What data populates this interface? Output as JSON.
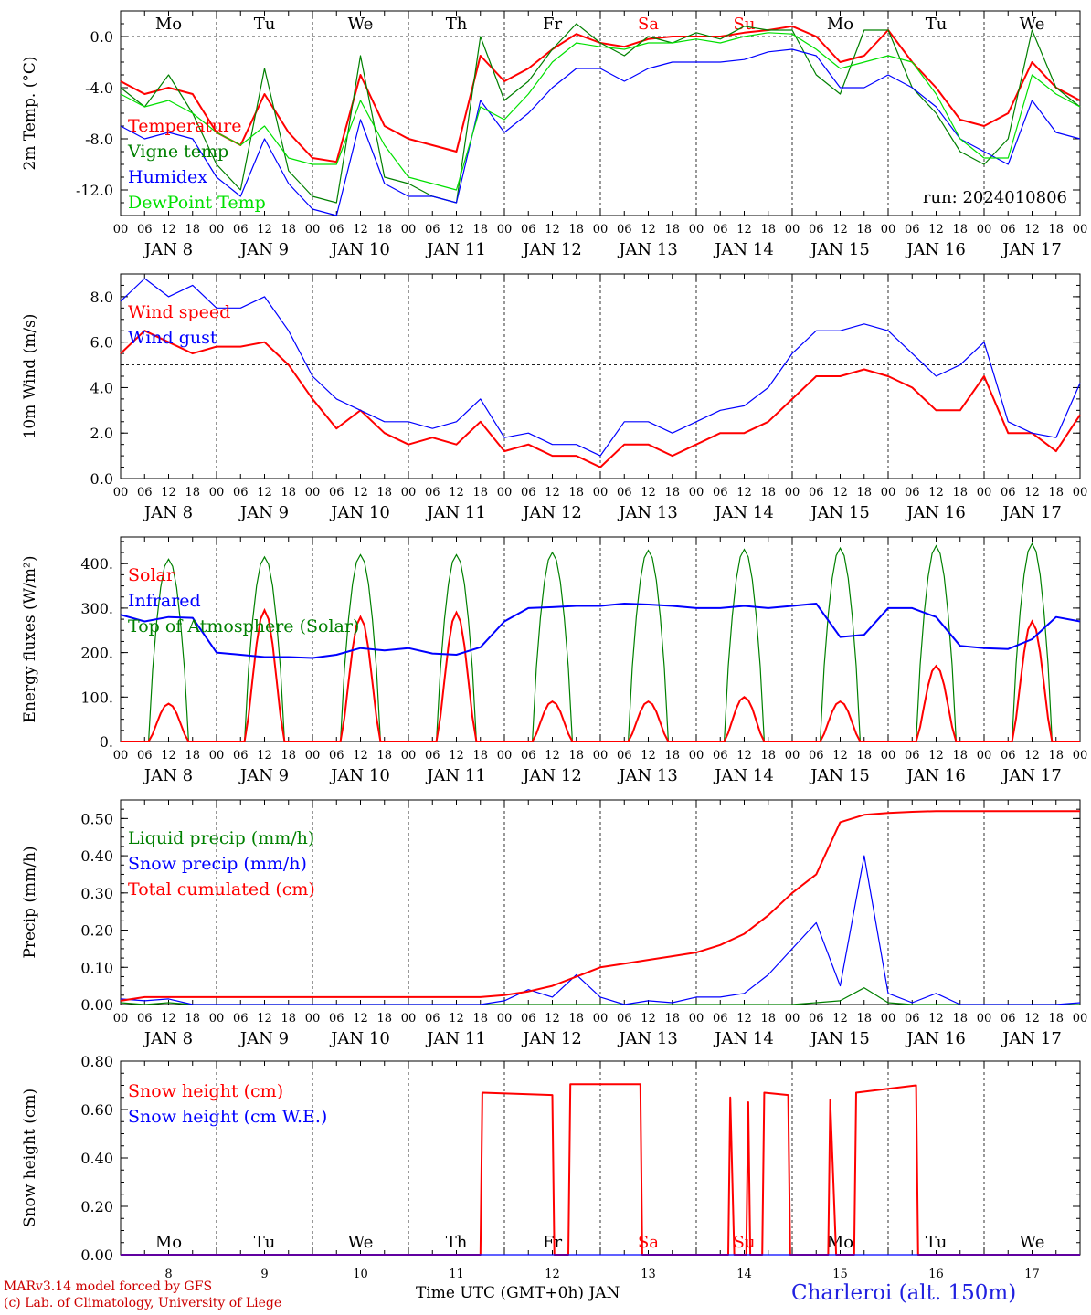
{
  "footer": {
    "credit_line1": "MARv3.14 model forced by GFS",
    "credit_line2": "(c) Lab. of Climatology, University of Liege",
    "xaxis_title": "Time UTC (GMT+0h) JAN",
    "station": "Charleroi (alt. 150m)"
  },
  "colors": {
    "red": "#ff0000",
    "green": "#008000",
    "lightgreen": "#00e000",
    "blue": "#0000ff",
    "darkred": "#cc0000"
  },
  "chart_data": [
    {
      "type": "line",
      "ylabel": "2m Temp. (°C)",
      "ylim": [
        -14,
        2
      ],
      "yticks": [
        0,
        -4,
        -8,
        -12
      ],
      "tick_labels": [
        "0.0",
        "-4.0",
        "-8.0",
        "-12.0"
      ],
      "refline": 0,
      "run_label": "run: 2024010806",
      "weekdays": [
        "Mo",
        "Tu",
        "We",
        "Th",
        "Fr",
        "Sa",
        "Su",
        "Mo",
        "Tu",
        "We"
      ],
      "legend": [
        "Temperature",
        "Vigne temp",
        "Humidex",
        "DewPoint Temp"
      ],
      "x_hours": [
        0,
        6,
        12,
        18,
        24,
        30,
        36,
        42,
        48,
        54,
        60,
        66,
        72,
        78,
        84,
        90,
        96,
        102,
        108,
        114,
        120,
        126,
        132,
        138,
        144,
        150,
        156,
        162,
        168,
        174,
        180,
        186,
        192,
        198,
        204,
        210,
        216,
        222,
        228,
        234,
        240
      ],
      "series": [
        {
          "name": "Temperature",
          "color": "red",
          "values": [
            -3.5,
            -4.5,
            -4.0,
            -4.5,
            -7.5,
            -8.5,
            -4.5,
            -7.5,
            -9.5,
            -9.8,
            -3.0,
            -7.0,
            -8.0,
            -8.5,
            -9.0,
            -1.5,
            -3.5,
            -2.5,
            -1.0,
            0.2,
            -0.5,
            -0.8,
            -0.2,
            0.0,
            0.0,
            0.0,
            0.3,
            0.5,
            0.8,
            0.0,
            -2.0,
            -1.5,
            0.5,
            -2.0,
            -4.0,
            -6.5,
            -7.0,
            -6.0,
            -2.0,
            -4.0,
            -5.0
          ]
        },
        {
          "name": "Vigne temp",
          "color": "green",
          "values": [
            -4.0,
            -5.5,
            -3.0,
            -6.0,
            -10.0,
            -12.0,
            -2.5,
            -10.5,
            -12.5,
            -13.0,
            -1.5,
            -11.0,
            -11.5,
            -12.5,
            -13.0,
            0.0,
            -5.0,
            -3.5,
            -1.0,
            1.0,
            -0.5,
            -1.5,
            0.0,
            -0.5,
            0.3,
            -0.2,
            0.8,
            0.5,
            0.5,
            -3.0,
            -4.5,
            0.5,
            0.5,
            -4.0,
            -6.0,
            -9.0,
            -10.0,
            -8.0,
            0.5,
            -4.0,
            -5.5
          ]
        },
        {
          "name": "Humidex",
          "color": "blue",
          "values": [
            -7.0,
            -8.0,
            -7.5,
            -8.0,
            -11.0,
            -12.5,
            -8.0,
            -11.5,
            -13.5,
            -14.0,
            -6.5,
            -11.5,
            -12.5,
            -12.5,
            -13.0,
            -5.0,
            -7.5,
            -6.0,
            -4.0,
            -2.5,
            -2.5,
            -3.5,
            -2.5,
            -2.0,
            -2.0,
            -2.0,
            -1.8,
            -1.2,
            -1.0,
            -1.5,
            -4.0,
            -4.0,
            -3.0,
            -4.0,
            -5.5,
            -8.0,
            -9.0,
            -10.0,
            -5.0,
            -7.5,
            -8.0
          ]
        },
        {
          "name": "DewPoint Temp",
          "color": "lightgreen",
          "values": [
            -4.5,
            -5.5,
            -5.0,
            -6.0,
            -7.5,
            -8.5,
            -7.0,
            -9.5,
            -10.0,
            -10.0,
            -5.0,
            -8.5,
            -11.0,
            -11.5,
            -12.0,
            -5.5,
            -6.5,
            -4.5,
            -2.0,
            -0.5,
            -0.8,
            -1.0,
            -0.5,
            -0.5,
            -0.2,
            -0.5,
            0.0,
            0.3,
            0.2,
            -1.0,
            -2.5,
            -2.0,
            -1.5,
            -2.0,
            -4.5,
            -8.0,
            -9.5,
            -9.5,
            -3.0,
            -4.5,
            -5.5
          ]
        }
      ]
    },
    {
      "type": "line",
      "ylabel": "10m Wind (m/s)",
      "ylim": [
        0,
        9
      ],
      "yticks": [
        0,
        2,
        4,
        6,
        8
      ],
      "tick_labels": [
        "0.0",
        "2.0",
        "4.0",
        "6.0",
        "8.0"
      ],
      "refline": 5,
      "legend": [
        "Wind speed",
        "Wind gust"
      ],
      "x_hours": [
        0,
        6,
        12,
        18,
        24,
        30,
        36,
        42,
        48,
        54,
        60,
        66,
        72,
        78,
        84,
        90,
        96,
        102,
        108,
        114,
        120,
        126,
        132,
        138,
        144,
        150,
        156,
        162,
        168,
        174,
        180,
        186,
        192,
        198,
        204,
        210,
        216,
        222,
        228,
        234,
        240
      ],
      "series": [
        {
          "name": "Wind speed",
          "color": "red",
          "values": [
            5.5,
            6.5,
            6.0,
            5.5,
            5.8,
            5.8,
            6.0,
            5.0,
            3.5,
            2.2,
            3.0,
            2.0,
            1.5,
            1.8,
            1.5,
            2.5,
            1.2,
            1.5,
            1.0,
            1.0,
            0.5,
            1.5,
            1.5,
            1.0,
            1.5,
            2.0,
            2.0,
            2.5,
            3.5,
            4.5,
            4.5,
            4.8,
            4.5,
            4.0,
            3.0,
            3.0,
            4.5,
            2.0,
            2.0,
            1.2,
            2.8
          ]
        },
        {
          "name": "Wind gust",
          "color": "blue",
          "values": [
            7.8,
            8.8,
            8.0,
            8.5,
            7.5,
            7.5,
            8.0,
            6.5,
            4.5,
            3.5,
            3.0,
            2.5,
            2.5,
            2.2,
            2.5,
            3.5,
            1.8,
            2.0,
            1.5,
            1.5,
            1.0,
            2.5,
            2.5,
            2.0,
            2.5,
            3.0,
            3.2,
            4.0,
            5.5,
            6.5,
            6.5,
            6.8,
            6.5,
            5.5,
            4.5,
            5.0,
            6.0,
            2.5,
            2.0,
            1.8,
            4.2
          ]
        }
      ]
    },
    {
      "type": "line",
      "ylabel": "Energy fluxes (W/m²)",
      "ylim": [
        0,
        460
      ],
      "yticks": [
        0,
        100,
        200,
        300,
        400
      ],
      "tick_labels": [
        "0.",
        "100.",
        "200.",
        "300.",
        "400."
      ],
      "legend": [
        "Solar",
        "Infrared",
        "Top of Atmosphere (Solar)"
      ],
      "daily_peak_hour": 12,
      "toa_solar_daily_peaks": [
        410,
        415,
        420,
        420,
        425,
        430,
        432,
        435,
        440,
        445
      ],
      "solar_daily_peaks": [
        85,
        295,
        280,
        290,
        90,
        90,
        100,
        90,
        170,
        270
      ],
      "infrared_x_hours": [
        0,
        6,
        12,
        18,
        24,
        30,
        36,
        42,
        48,
        54,
        60,
        66,
        72,
        78,
        84,
        90,
        96,
        102,
        108,
        114,
        120,
        126,
        132,
        138,
        144,
        150,
        156,
        162,
        168,
        174,
        180,
        186,
        192,
        198,
        204,
        210,
        216,
        222,
        228,
        234,
        240
      ],
      "infrared_values": [
        285,
        270,
        280,
        278,
        200,
        195,
        190,
        190,
        188,
        195,
        210,
        205,
        210,
        198,
        195,
        212,
        270,
        300,
        302,
        305,
        305,
        310,
        308,
        305,
        300,
        300,
        305,
        300,
        305,
        310,
        235,
        240,
        300,
        300,
        280,
        215,
        210,
        208,
        230,
        280,
        270
      ]
    },
    {
      "type": "line",
      "ylabel": "Precip (mm/h)",
      "ylim": [
        0,
        0.55
      ],
      "yticks": [
        0,
        0.1,
        0.2,
        0.3,
        0.4,
        0.5
      ],
      "tick_labels": [
        "0.00",
        "0.10",
        "0.20",
        "0.30",
        "0.40",
        "0.50"
      ],
      "legend": [
        "Liquid precip (mm/h)",
        "Snow precip (mm/h)",
        "Total cumulated (cm)"
      ],
      "x_hours": [
        0,
        6,
        12,
        18,
        24,
        30,
        36,
        42,
        48,
        54,
        60,
        66,
        72,
        78,
        84,
        90,
        96,
        102,
        108,
        114,
        120,
        126,
        132,
        138,
        144,
        150,
        156,
        162,
        168,
        174,
        180,
        186,
        192,
        198,
        204,
        210,
        216,
        222,
        228,
        234,
        240
      ],
      "series": [
        {
          "name": "Liquid precip (mm/h)",
          "color": "green",
          "values": [
            0.005,
            0,
            0.005,
            0,
            0,
            0,
            0,
            0,
            0,
            0,
            0,
            0,
            0,
            0,
            0,
            0,
            0,
            0,
            0,
            0,
            0,
            0,
            0,
            0,
            0,
            0,
            0,
            0,
            0,
            0.005,
            0.01,
            0.045,
            0.005,
            0,
            0,
            0,
            0,
            0,
            0,
            0,
            0
          ]
        },
        {
          "name": "Snow precip (mm/h)",
          "color": "blue",
          "values": [
            0.015,
            0.01,
            0.015,
            0,
            0,
            0,
            0,
            0,
            0,
            0,
            0,
            0,
            0,
            0,
            0,
            0,
            0.01,
            0.04,
            0.02,
            0.08,
            0.02,
            0,
            0.01,
            0.005,
            0.02,
            0.02,
            0.03,
            0.08,
            0.15,
            0.22,
            0.05,
            0.4,
            0.03,
            0.005,
            0.03,
            0,
            0,
            0,
            0,
            0,
            0.005
          ]
        },
        {
          "name": "Total cumulated (cm)",
          "color": "red",
          "values": [
            0.01,
            0.02,
            0.02,
            0.02,
            0.02,
            0.02,
            0.02,
            0.02,
            0.02,
            0.02,
            0.02,
            0.02,
            0.02,
            0.02,
            0.02,
            0.02,
            0.025,
            0.035,
            0.05,
            0.075,
            0.1,
            0.11,
            0.12,
            0.13,
            0.14,
            0.16,
            0.19,
            0.24,
            0.3,
            0.35,
            0.49,
            0.51,
            0.515,
            0.518,
            0.52,
            0.52,
            0.52,
            0.52,
            0.52,
            0.52,
            0.52
          ]
        }
      ]
    },
    {
      "type": "line",
      "ylabel": "Snow height (cm)",
      "ylim": [
        0,
        0.8
      ],
      "yticks": [
        0,
        0.2,
        0.4,
        0.6,
        0.8
      ],
      "tick_labels": [
        "0.00",
        "0.20",
        "0.40",
        "0.60",
        "0.80"
      ],
      "legend": [
        "Snow height (cm)",
        "Snow height (cm W.E.)"
      ],
      "weekdays": [
        "Mo",
        "Tu",
        "We",
        "Th",
        "Fr",
        "Sa",
        "Su",
        "Mo",
        "Tu",
        "We"
      ],
      "day_numbers": [
        "8",
        "9",
        "10",
        "11",
        "12",
        "13",
        "14",
        "15",
        "16",
        "17"
      ],
      "series": [
        {
          "name": "Snow height (cm)",
          "color": "red",
          "x_hours": [
            0,
            90,
            90.5,
            108,
            108.5,
            112,
            112.5,
            130,
            130.5,
            152,
            152.5,
            153.5,
            154,
            156.5,
            157,
            157.5,
            158,
            160.5,
            161,
            167,
            167.5,
            177,
            177.5,
            179,
            179.5,
            183.5,
            184,
            199,
            199.5,
            218,
            240
          ],
          "values": [
            0,
            0,
            0.67,
            0.66,
            0,
            0,
            0.705,
            0.705,
            0,
            0,
            0.65,
            0,
            0,
            0,
            0.63,
            0,
            0,
            0,
            0.67,
            0.66,
            0,
            0,
            0.64,
            0,
            0,
            0,
            0.67,
            0.7,
            0,
            0,
            0
          ]
        },
        {
          "name": "Snow height (cm W.E.)",
          "color": "blue",
          "x_hours": [
            0,
            240
          ],
          "values": [
            0,
            0
          ]
        }
      ]
    }
  ],
  "time_axis": {
    "hour_labels": [
      "00",
      "06",
      "12",
      "18"
    ],
    "last_label": "00",
    "date_labels": [
      "JAN  8",
      "JAN  9",
      "JAN 10",
      "JAN 11",
      "JAN 12",
      "JAN 13",
      "JAN 14",
      "JAN 15",
      "JAN 16",
      "JAN 17"
    ],
    "weekend_days": [
      "Sa",
      "Su"
    ]
  }
}
